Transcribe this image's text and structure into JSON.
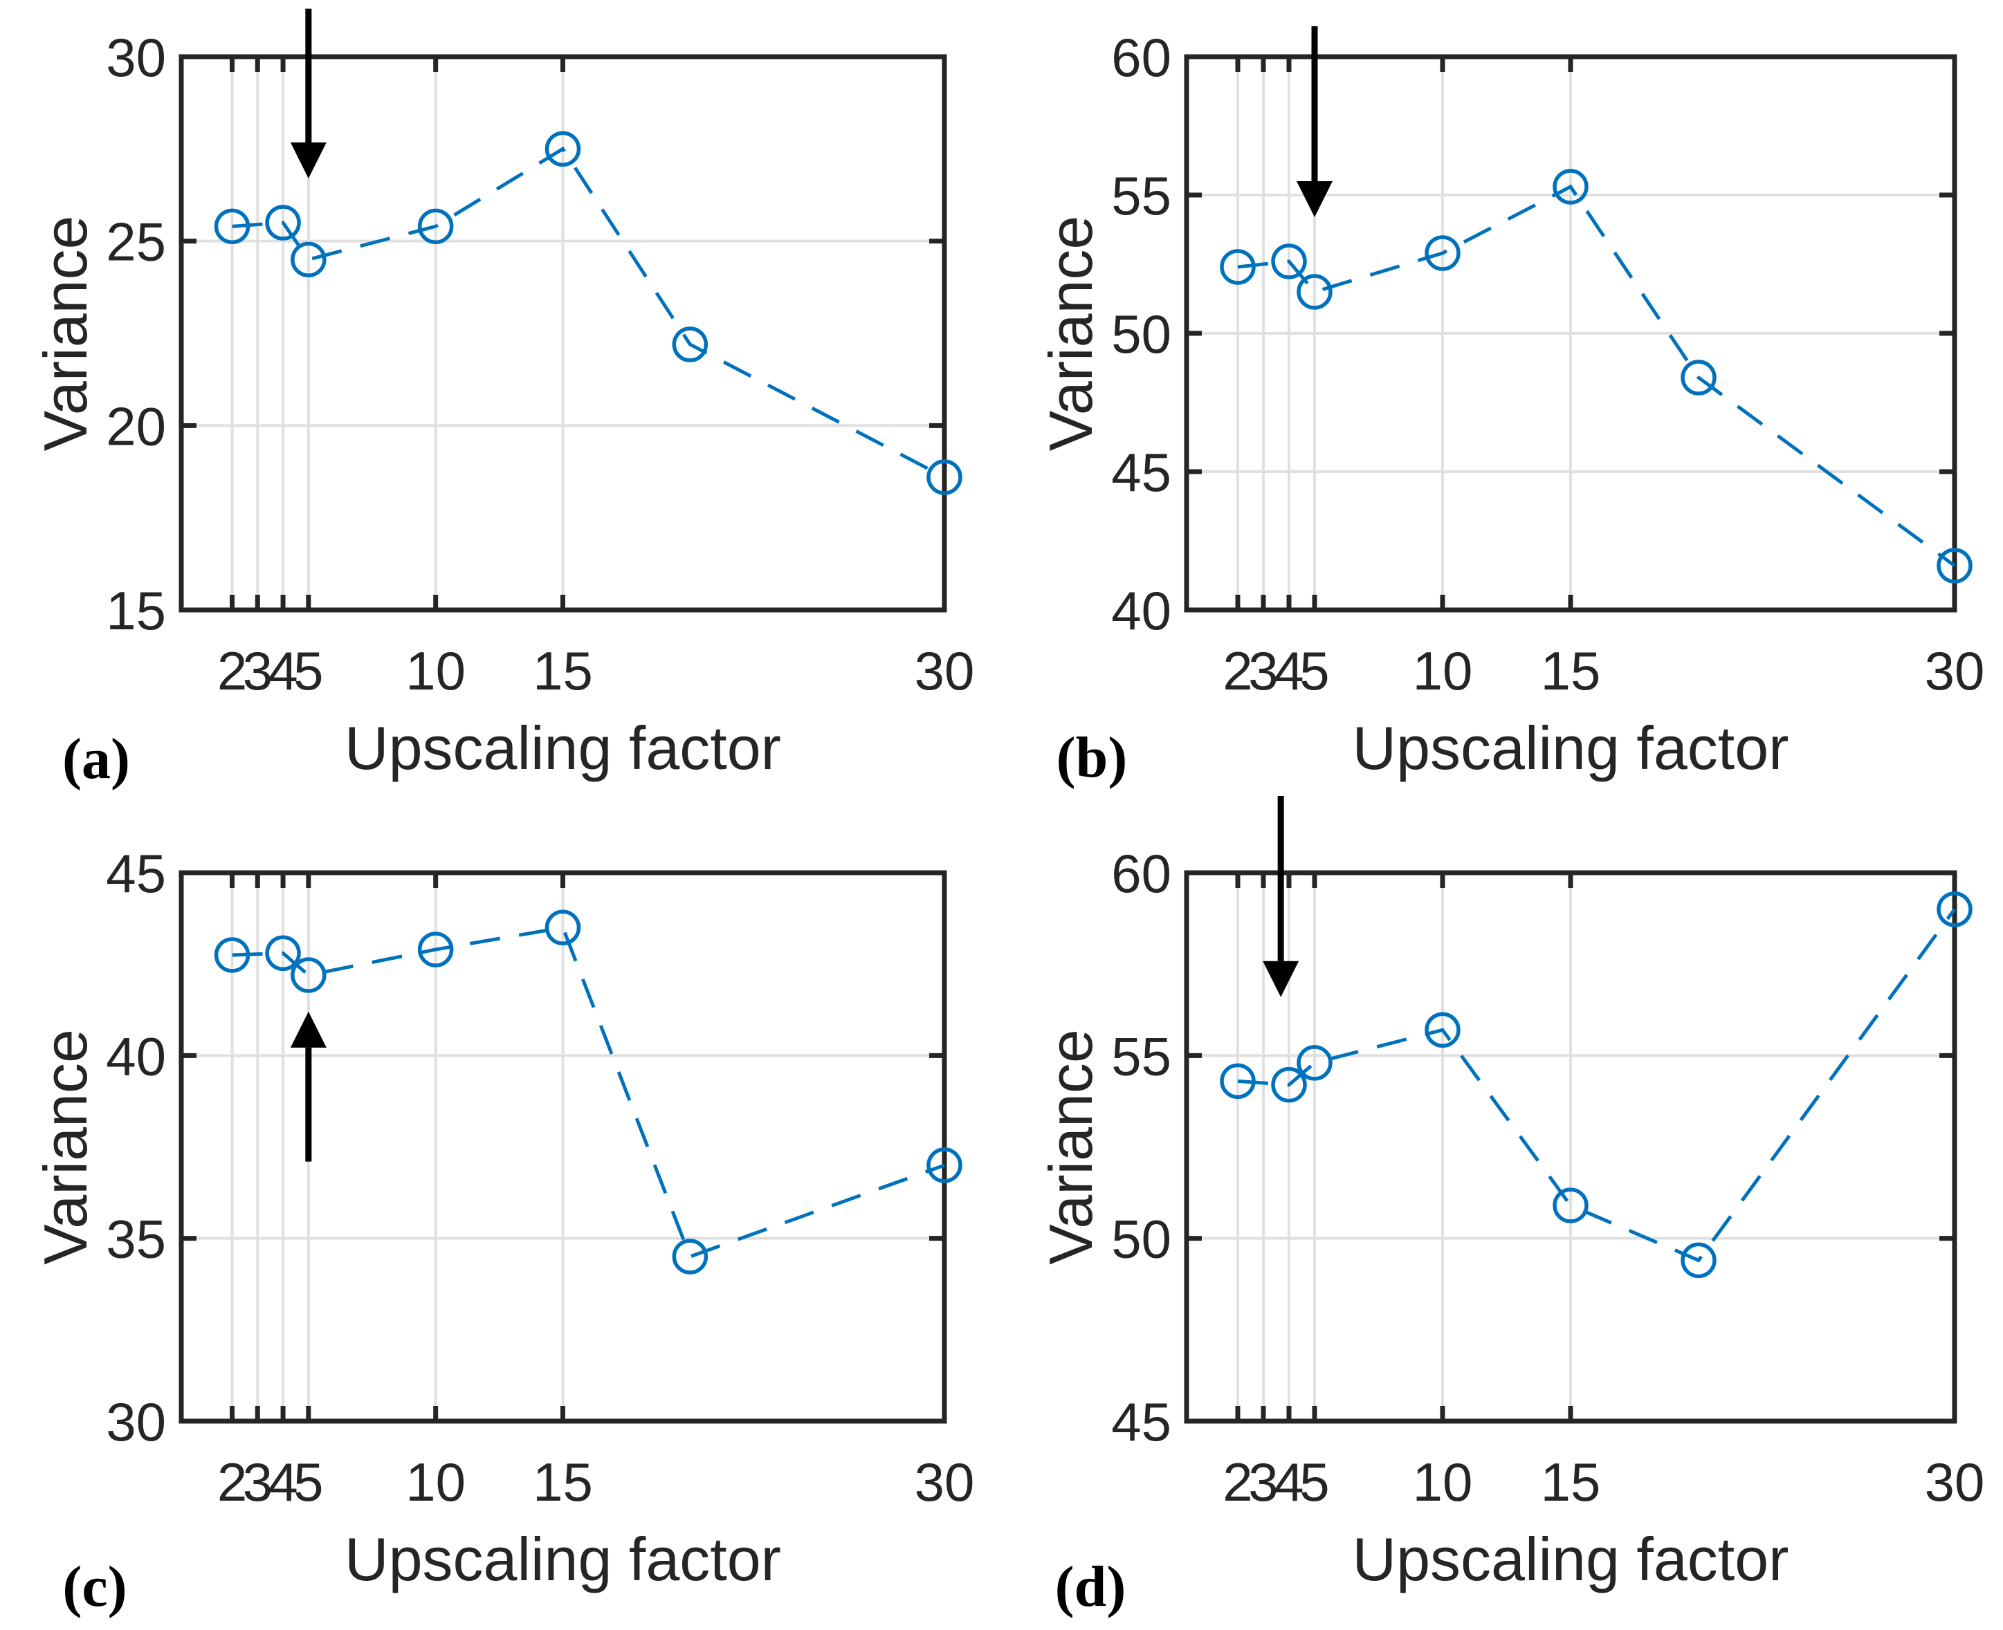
{
  "figure": {
    "description": "Four MATLAB-style subplots of variance versus upscaling factor, each marked with a black arrow annotation",
    "background_color": "#ffffff"
  },
  "colors": {
    "series": "#0072BD",
    "axis": "#252525",
    "grid": "#E0E0E0",
    "text": "#252525",
    "arrow": "#000000",
    "background": "#ffffff"
  },
  "chart_data": [
    {
      "type": "line",
      "panel_id": "a",
      "panel_label": "(a)",
      "title": "",
      "xlabel": "Upscaling factor",
      "ylabel": "Variance",
      "x": [
        2,
        4,
        5,
        10,
        15,
        20,
        30
      ],
      "y": [
        25.4,
        25.5,
        24.5,
        25.4,
        27.5,
        22.2,
        18.6
      ],
      "xlim": [
        0,
        30
      ],
      "ylim": [
        15,
        30
      ],
      "xticks": [
        2,
        3,
        4,
        5,
        10,
        15,
        30
      ],
      "yticks": [
        15,
        20,
        25,
        30
      ],
      "grid": true,
      "legend": "none",
      "linestyle": "dashed",
      "marker": "circle",
      "annotation_arrow": {
        "x": 5,
        "direction": "down",
        "tail": 31.3,
        "tip": 26.7
      }
    },
    {
      "type": "line",
      "panel_id": "b",
      "panel_label": "(b)",
      "title": "",
      "xlabel": "Upscaling factor",
      "ylabel": "Variance",
      "x": [
        2,
        4,
        5,
        10,
        15,
        20,
        30
      ],
      "y": [
        52.4,
        52.6,
        51.5,
        52.9,
        55.3,
        48.4,
        41.6
      ],
      "xlim": [
        0,
        30
      ],
      "ylim": [
        40,
        60
      ],
      "xticks": [
        2,
        3,
        4,
        5,
        10,
        15,
        30
      ],
      "yticks": [
        40,
        45,
        50,
        55,
        60
      ],
      "grid": true,
      "legend": "none",
      "linestyle": "dashed",
      "marker": "circle",
      "annotation_arrow": {
        "x": 5,
        "direction": "down",
        "tail": 61.1,
        "tip": 54.2
      }
    },
    {
      "type": "line",
      "panel_id": "c",
      "panel_label": "(c)",
      "title": "",
      "xlabel": "Upscaling factor",
      "ylabel": "Variance",
      "x": [
        2,
        4,
        5,
        10,
        15,
        20,
        30
      ],
      "y": [
        42.75,
        42.8,
        42.2,
        42.9,
        43.5,
        34.5,
        37.0
      ],
      "xlim": [
        0,
        30
      ],
      "ylim": [
        30,
        45
      ],
      "xticks": [
        2,
        3,
        4,
        5,
        10,
        15,
        30
      ],
      "yticks": [
        30,
        35,
        40,
        45
      ],
      "grid": true,
      "legend": "none",
      "linestyle": "dashed",
      "marker": "circle",
      "annotation_arrow": {
        "x": 5,
        "direction": "up",
        "tail": 37.1,
        "tip": 41.2
      }
    },
    {
      "type": "line",
      "panel_id": "d",
      "panel_label": "(d)",
      "title": "",
      "xlabel": "Upscaling factor",
      "ylabel": "Variance",
      "x": [
        2,
        4,
        5,
        10,
        15,
        20,
        30
      ],
      "y": [
        54.3,
        54.2,
        54.8,
        55.7,
        50.9,
        49.4,
        59.0
      ],
      "xlim": [
        0,
        30
      ],
      "ylim": [
        45,
        60
      ],
      "xticks": [
        2,
        3,
        4,
        5,
        10,
        15,
        30
      ],
      "yticks": [
        45,
        50,
        55,
        60
      ],
      "grid": true,
      "legend": "none",
      "linestyle": "dashed",
      "marker": "circle",
      "annotation_arrow": {
        "x": 3.68,
        "direction": "down",
        "tail": 62.1,
        "tip": 56.6
      }
    }
  ]
}
